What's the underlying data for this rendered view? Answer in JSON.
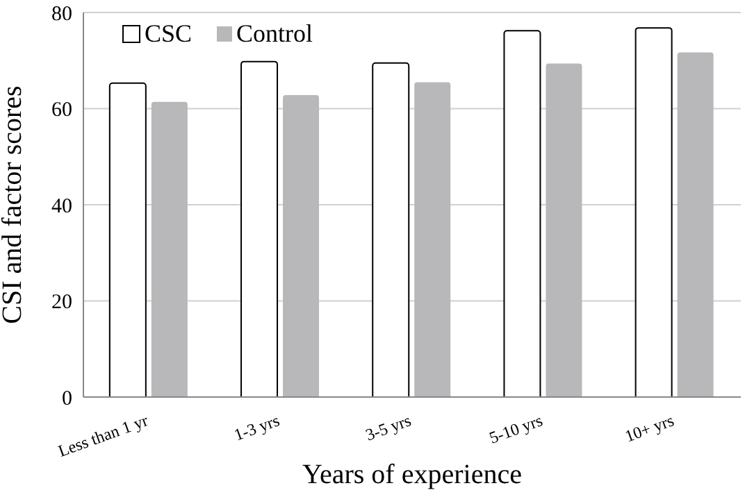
{
  "chart_data": {
    "type": "bar",
    "xlabel": "Years of experience",
    "ylabel": "CSI and factor scores",
    "categories": [
      "Less than 1 yr",
      "1-3 yrs",
      "3-5 yrs",
      "5-10 yrs",
      "10+ yrs"
    ],
    "series": [
      {
        "name": "CSC",
        "color": "#ffffff",
        "values": [
          65.3,
          69.8,
          69.5,
          76.2,
          76.8
        ]
      },
      {
        "name": "Control",
        "color": "#b8b8ba",
        "values": [
          61.4,
          62.8,
          65.5,
          69.4,
          71.7
        ]
      }
    ],
    "ylim": [
      0,
      80
    ],
    "yticks": [
      0,
      20,
      40,
      60,
      80
    ],
    "grid": "y",
    "legend": "top left"
  }
}
